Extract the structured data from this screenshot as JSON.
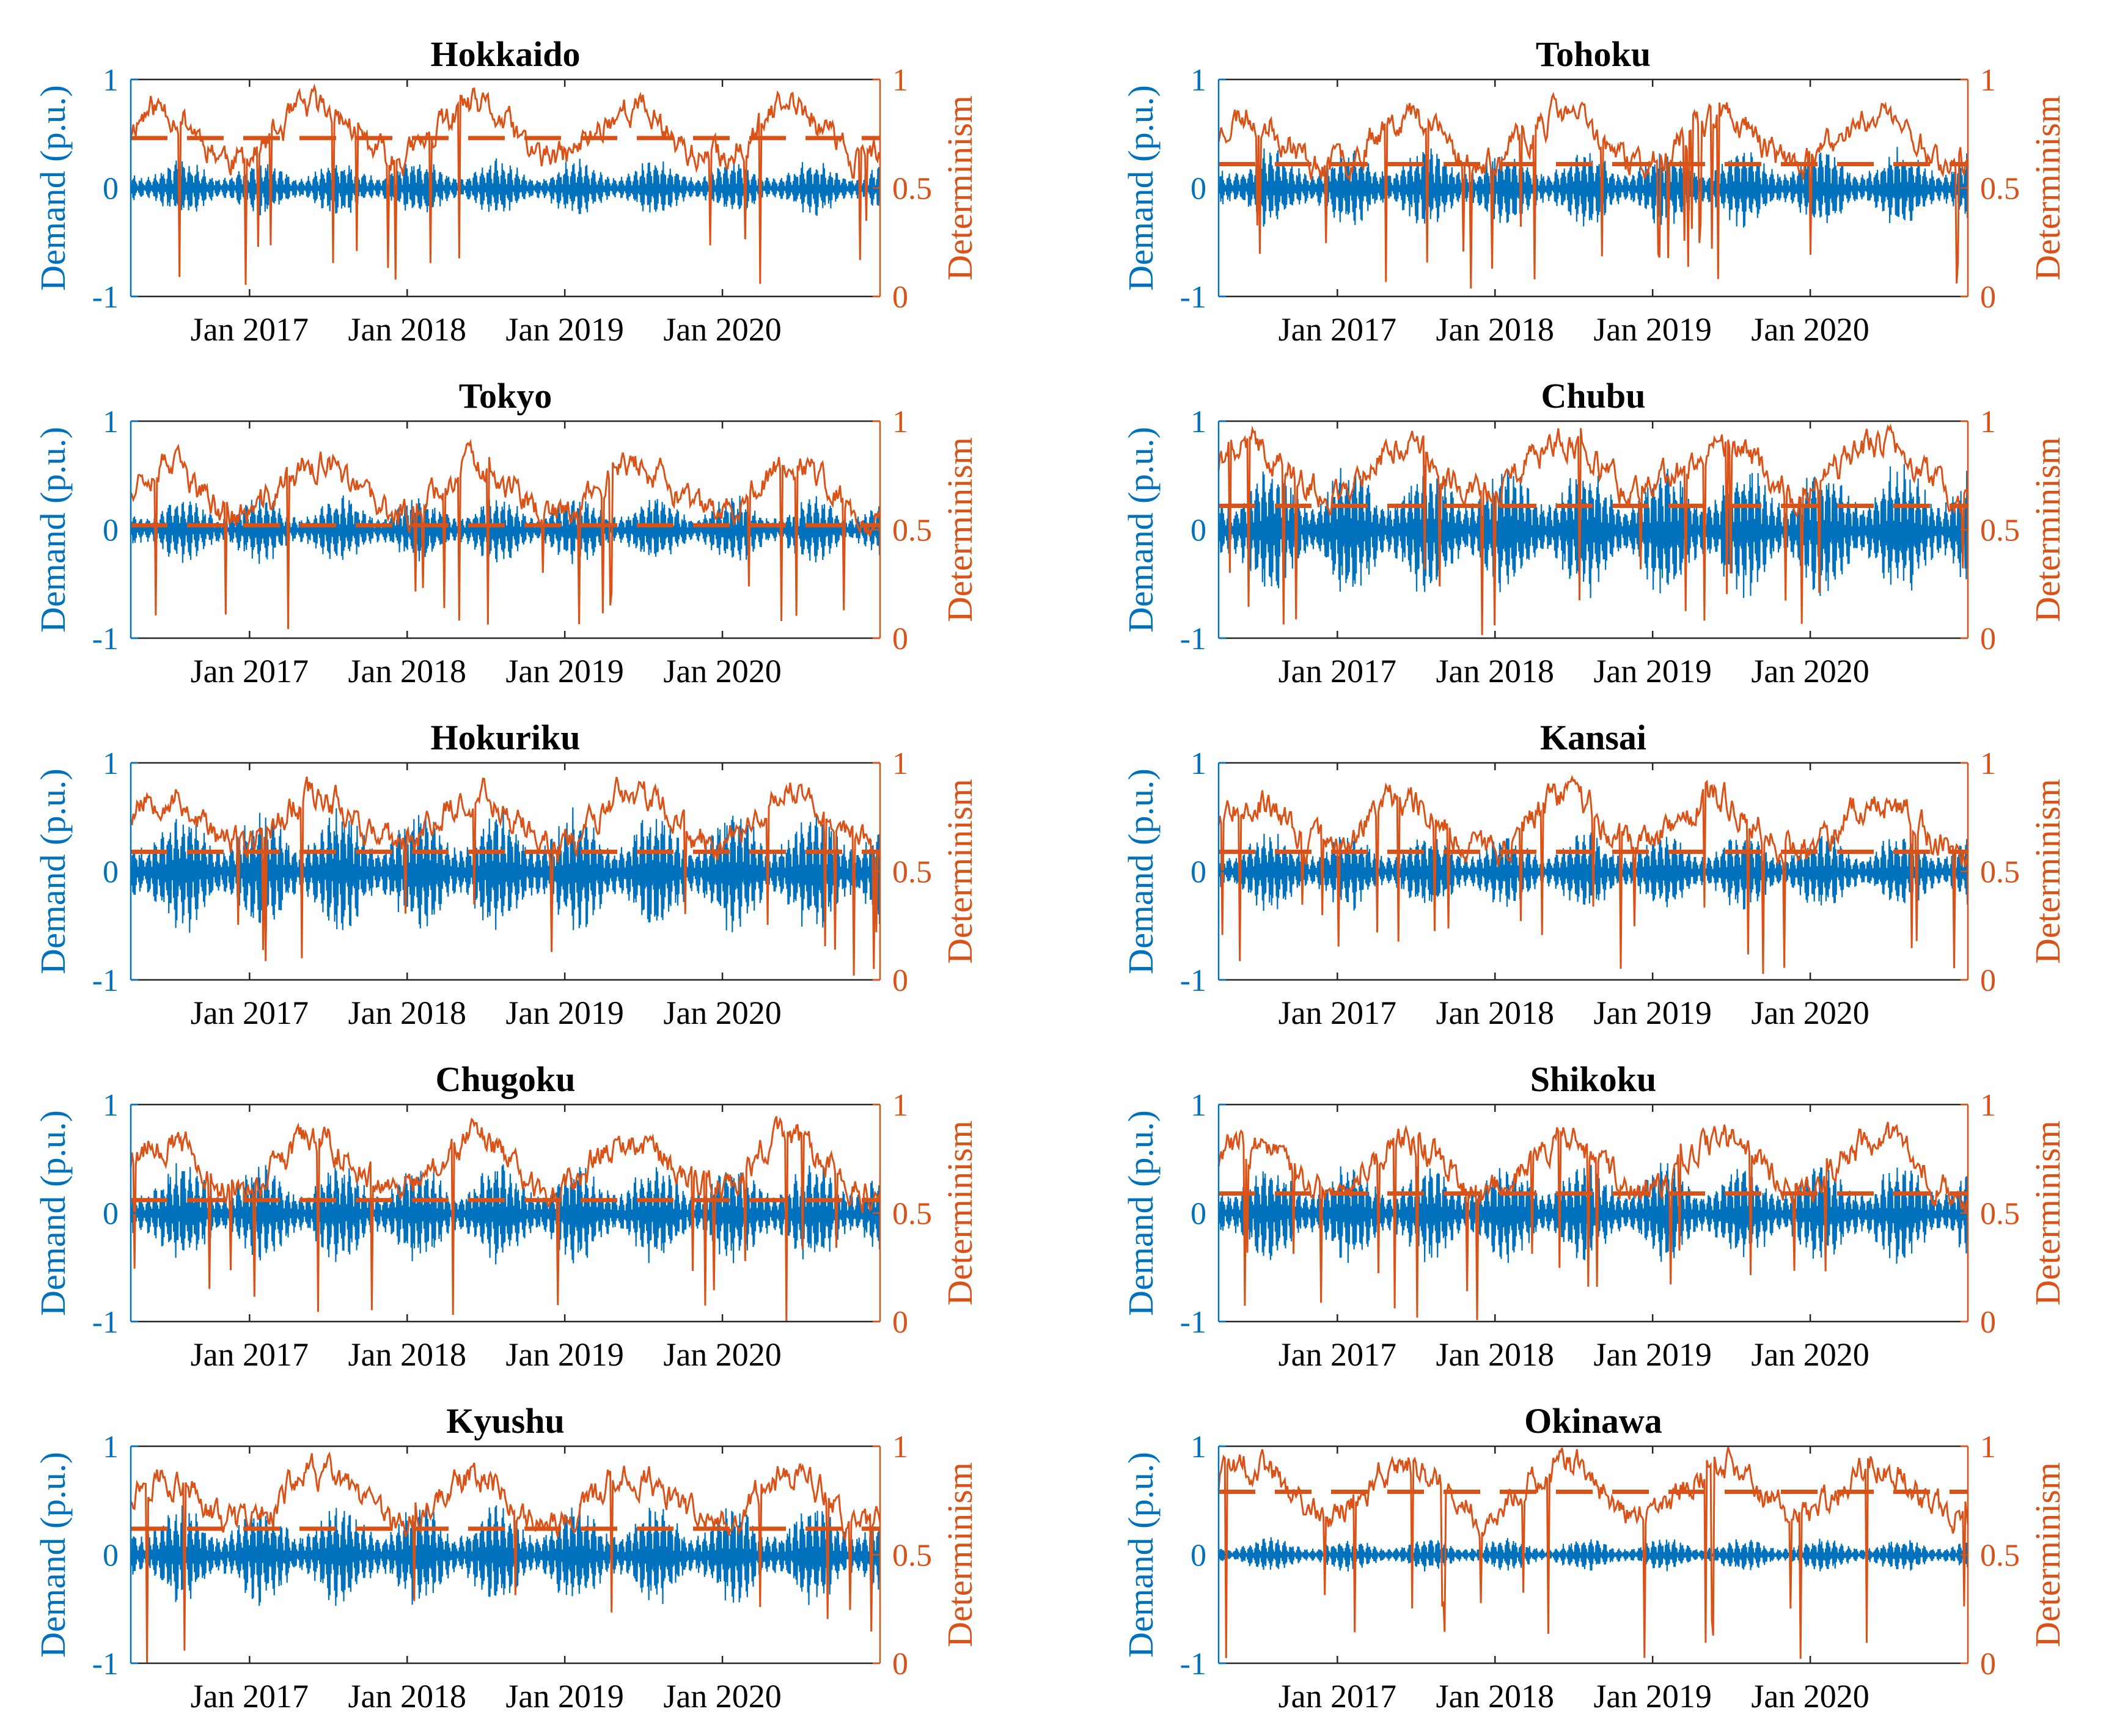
{
  "figure": {
    "demand_color": "#0072BD",
    "determinism_color": "#D95319",
    "left_axis_label": "Demand (p.u.)",
    "right_axis_label": "Determinism",
    "left_ticks": [
      "-1",
      "0",
      "1"
    ],
    "right_ticks": [
      "0",
      "0.5",
      "1"
    ],
    "x_ticks": [
      "Jan 2017",
      "Jan 2018",
      "Jan 2019",
      "Jan 2020"
    ]
  },
  "chart_data": [
    {
      "type": "line",
      "title": "Hokkaido",
      "xlabel": "",
      "ylabel": "Demand (p.u.)",
      "ylabel_right": "Determinism",
      "ylim": [
        -1,
        1
      ],
      "ylim_right": [
        0,
        1
      ],
      "xlim": [
        "2016-04-01",
        "2020-12-31"
      ],
      "x_ticks": [
        "Jan 2017",
        "Jan 2018",
        "Jan 2019",
        "Jan 2020"
      ],
      "series": [
        {
          "name": "Demand",
          "axis": "left",
          "amplitude": 0.25
        },
        {
          "name": "Determinism",
          "axis": "right",
          "mean": 0.75,
          "seed": 11
        },
        {
          "name": "Threshold",
          "axis": "right",
          "style": "dashed",
          "value": 0.73
        }
      ]
    },
    {
      "type": "line",
      "title": "Tohoku",
      "xlabel": "",
      "ylabel": "Demand (p.u.)",
      "ylabel_right": "Determinism",
      "ylim": [
        -1,
        1
      ],
      "ylim_right": [
        0,
        1
      ],
      "xlim": [
        "2016-04-01",
        "2020-12-31"
      ],
      "x_ticks": [
        "Jan 2017",
        "Jan 2018",
        "Jan 2019",
        "Jan 2020"
      ],
      "series": [
        {
          "name": "Demand",
          "axis": "left",
          "amplitude": 0.35
        },
        {
          "name": "Determinism",
          "axis": "right",
          "mean": 0.72,
          "seed": 23
        },
        {
          "name": "Threshold",
          "axis": "right",
          "style": "dashed",
          "value": 0.61
        }
      ]
    },
    {
      "type": "line",
      "title": "Tokyo",
      "xlabel": "",
      "ylabel": "Demand (p.u.)",
      "ylabel_right": "Determinism",
      "ylim": [
        -1,
        1
      ],
      "ylim_right": [
        0,
        1
      ],
      "xlim": [
        "2016-04-01",
        "2020-12-31"
      ],
      "x_ticks": [
        "Jan 2017",
        "Jan 2018",
        "Jan 2019",
        "Jan 2020"
      ],
      "series": [
        {
          "name": "Demand",
          "axis": "left",
          "amplitude": 0.3
        },
        {
          "name": "Determinism",
          "axis": "right",
          "mean": 0.68,
          "seed": 37
        },
        {
          "name": "Threshold",
          "axis": "right",
          "style": "dashed",
          "value": 0.52
        }
      ]
    },
    {
      "type": "line",
      "title": "Chubu",
      "xlabel": "",
      "ylabel": "Demand (p.u.)",
      "ylabel_right": "Determinism",
      "ylim": [
        -1,
        1
      ],
      "ylim_right": [
        0,
        1
      ],
      "xlim": [
        "2016-04-01",
        "2020-12-31"
      ],
      "x_ticks": [
        "Jan 2017",
        "Jan 2018",
        "Jan 2019",
        "Jan 2020"
      ],
      "series": [
        {
          "name": "Demand",
          "axis": "left",
          "amplitude": 0.6
        },
        {
          "name": "Determinism",
          "axis": "right",
          "mean": 0.78,
          "seed": 41
        },
        {
          "name": "Threshold",
          "axis": "right",
          "style": "dashed",
          "value": 0.61
        }
      ]
    },
    {
      "type": "line",
      "title": "Hokuriku",
      "xlabel": "",
      "ylabel": "Demand (p.u.)",
      "ylabel_right": "Determinism",
      "ylim": [
        -1,
        1
      ],
      "ylim_right": [
        0,
        1
      ],
      "xlim": [
        "2016-04-01",
        "2020-12-31"
      ],
      "x_ticks": [
        "Jan 2017",
        "Jan 2018",
        "Jan 2019",
        "Jan 2020"
      ],
      "series": [
        {
          "name": "Demand",
          "axis": "left",
          "amplitude": 0.55
        },
        {
          "name": "Determinism",
          "axis": "right",
          "mean": 0.74,
          "seed": 53
        },
        {
          "name": "Threshold",
          "axis": "right",
          "style": "dashed",
          "value": 0.59
        }
      ]
    },
    {
      "type": "line",
      "title": "Kansai",
      "xlabel": "",
      "ylabel": "Demand (p.u.)",
      "ylabel_right": "Determinism",
      "ylim": [
        -1,
        1
      ],
      "ylim_right": [
        0,
        1
      ],
      "xlim": [
        "2016-04-01",
        "2020-12-31"
      ],
      "x_ticks": [
        "Jan 2017",
        "Jan 2018",
        "Jan 2019",
        "Jan 2020"
      ],
      "series": [
        {
          "name": "Demand",
          "axis": "left",
          "amplitude": 0.35
        },
        {
          "name": "Determinism",
          "axis": "right",
          "mean": 0.72,
          "seed": 67
        },
        {
          "name": "Threshold",
          "axis": "right",
          "style": "dashed",
          "value": 0.59
        }
      ]
    },
    {
      "type": "line",
      "title": "Chugoku",
      "xlabel": "",
      "ylabel": "Demand (p.u.)",
      "ylabel_right": "Determinism",
      "ylim": [
        -1,
        1
      ],
      "ylim_right": [
        0,
        1
      ],
      "xlim": [
        "2016-04-01",
        "2020-12-31"
      ],
      "x_ticks": [
        "Jan 2017",
        "Jan 2018",
        "Jan 2019",
        "Jan 2020"
      ],
      "series": [
        {
          "name": "Demand",
          "axis": "left",
          "amplitude": 0.45
        },
        {
          "name": "Determinism",
          "axis": "right",
          "mean": 0.72,
          "seed": 79
        },
        {
          "name": "Threshold",
          "axis": "right",
          "style": "dashed",
          "value": 0.56
        }
      ]
    },
    {
      "type": "line",
      "title": "Shikoku",
      "xlabel": "",
      "ylabel": "Demand (p.u.)",
      "ylabel_right": "Determinism",
      "ylim": [
        -1,
        1
      ],
      "ylim_right": [
        0,
        1
      ],
      "xlim": [
        "2016-04-01",
        "2020-12-31"
      ],
      "x_ticks": [
        "Jan 2017",
        "Jan 2018",
        "Jan 2019",
        "Jan 2020"
      ],
      "series": [
        {
          "name": "Demand",
          "axis": "left",
          "amplitude": 0.45
        },
        {
          "name": "Determinism",
          "axis": "right",
          "mean": 0.72,
          "seed": 83
        },
        {
          "name": "Threshold",
          "axis": "right",
          "style": "dashed",
          "value": 0.59
        }
      ]
    },
    {
      "type": "line",
      "title": "Kyushu",
      "xlabel": "",
      "ylabel": "Demand (p.u.)",
      "ylabel_right": "Determinism",
      "ylim": [
        -1,
        1
      ],
      "ylim_right": [
        0,
        1
      ],
      "xlim": [
        "2016-04-01",
        "2020-12-31"
      ],
      "x_ticks": [
        "Jan 2017",
        "Jan 2018",
        "Jan 2019",
        "Jan 2020"
      ],
      "series": [
        {
          "name": "Demand",
          "axis": "left",
          "amplitude": 0.45
        },
        {
          "name": "Determinism",
          "axis": "right",
          "mean": 0.75,
          "seed": 97
        },
        {
          "name": "Threshold",
          "axis": "right",
          "style": "dashed",
          "value": 0.62
        }
      ]
    },
    {
      "type": "line",
      "title": "Okinawa",
      "xlabel": "",
      "ylabel": "Demand (p.u.)",
      "ylabel_right": "Determinism",
      "ylim": [
        -1,
        1
      ],
      "ylim_right": [
        0,
        1
      ],
      "xlim": [
        "2016-04-01",
        "2020-12-31"
      ],
      "x_ticks": [
        "Jan 2017",
        "Jan 2018",
        "Jan 2019",
        "Jan 2020"
      ],
      "series": [
        {
          "name": "Demand",
          "axis": "left",
          "amplitude": 0.15
        },
        {
          "name": "Determinism",
          "axis": "right",
          "mean": 0.8,
          "seed": 101
        },
        {
          "name": "Threshold",
          "axis": "right",
          "style": "dashed",
          "value": 0.79
        }
      ]
    }
  ]
}
